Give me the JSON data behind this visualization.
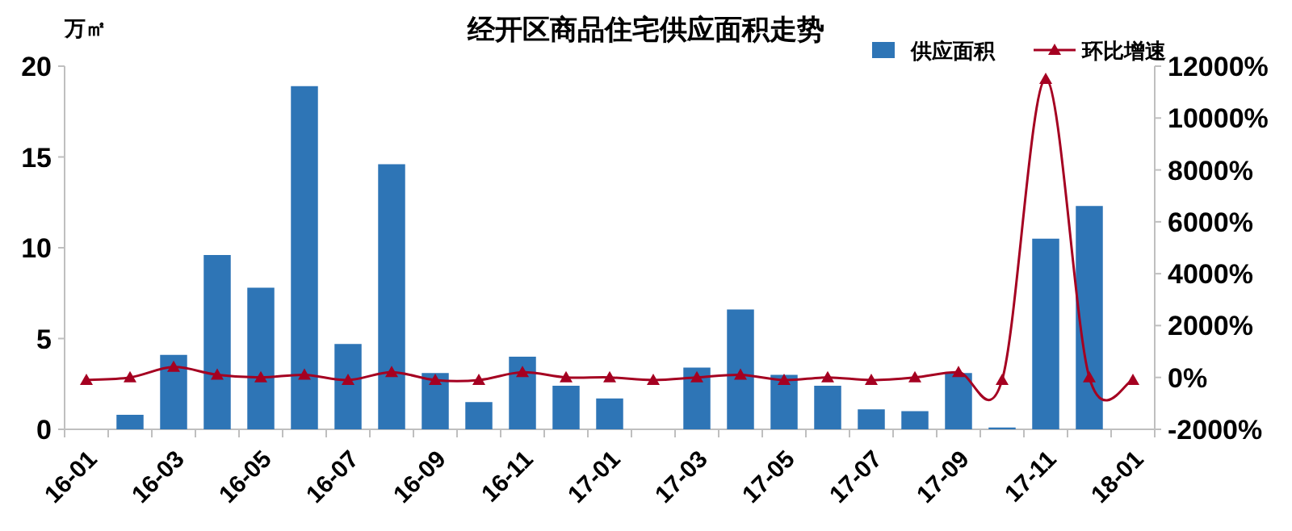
{
  "chart_data": {
    "type": "bar",
    "title": "经开区商品住宅供应面积走势",
    "ylabel": "万㎡",
    "categories": [
      "16-01",
      null,
      "16-03",
      null,
      "16-05",
      null,
      "16-07",
      null,
      "16-09",
      null,
      "16-11",
      null,
      "17-01",
      null,
      "17-03",
      null,
      "17-05",
      null,
      "17-07",
      null,
      "17-09",
      null,
      "17-11",
      null,
      "18-01"
    ],
    "series": [
      {
        "name": "供应面积",
        "color": "#2e75b6",
        "values": [
          null,
          0.8,
          4.1,
          9.6,
          7.8,
          18.9,
          4.7,
          14.6,
          3.1,
          1.5,
          4.0,
          2.4,
          1.7,
          null,
          3.4,
          6.6,
          3.0,
          2.4,
          1.1,
          1.0,
          3.1,
          0.1,
          10.5,
          12.3,
          null
        ]
      },
      {
        "name": "环比增速",
        "type": "line",
        "axis": "y2",
        "marker": "triangle",
        "color": "#a50021",
        "values": [
          -100,
          0,
          400,
          100,
          0,
          100,
          -100,
          200,
          -100,
          -100,
          200,
          0,
          0,
          -100,
          0,
          100,
          -100,
          0,
          -100,
          0,
          200,
          -100,
          11500,
          0,
          -100
        ]
      }
    ],
    "ylim": [
      0,
      20
    ],
    "yticks": [
      0,
      5,
      10,
      15,
      20
    ],
    "y2lim": [
      -2000,
      12000
    ],
    "y2ticks": [
      {
        "value": -2000,
        "label": "-2000%"
      },
      {
        "value": 0,
        "label": "0%"
      },
      {
        "value": 2000,
        "label": "2000%"
      },
      {
        "value": 4000,
        "label": "4000%"
      },
      {
        "value": 6000,
        "label": "6000%"
      },
      {
        "value": 8000,
        "label": "8000%"
      },
      {
        "value": 10000,
        "label": "10000%"
      },
      {
        "value": 12000,
        "label": "12000%"
      }
    ],
    "legend": "top right"
  }
}
